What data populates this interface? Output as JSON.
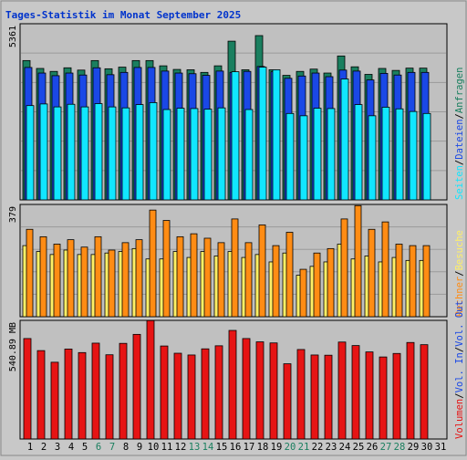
{
  "title": "Tages-Statistik im Monat September 2025",
  "colors": {
    "background": "#c8c8c8",
    "plot_bg": "#c0c0c0",
    "grid": "#9a9a9a",
    "title": "#0033cc",
    "anfragen": "#1a7f5f",
    "dateien": "#1a48e6",
    "seiten": "#11e6ff",
    "besuche": "#fff066",
    "rechner": "#ff8c14",
    "vol_in": "#e61414",
    "weekend_label": "#1a7f5f"
  },
  "chart_data": [
    {
      "type": "bar",
      "ymax_label": "5361",
      "ylim": [
        0,
        5361
      ],
      "grid": true,
      "categories": [
        "1",
        "2",
        "3",
        "4",
        "5",
        "6",
        "7",
        "8",
        "9",
        "10",
        "11",
        "12",
        "13",
        "14",
        "15",
        "16",
        "17",
        "18",
        "19",
        "20",
        "21",
        "22",
        "23",
        "24",
        "25",
        "26",
        "27",
        "28",
        "29",
        "30",
        "31"
      ],
      "weekend_days": [
        "6",
        "7",
        "13",
        "14",
        "20",
        "21",
        "27",
        "28"
      ],
      "axis_right_labels": [
        "Anfragen",
        "Dateien",
        "Seiten"
      ],
      "axis_right_separator": "/",
      "series": [
        {
          "name": "Anfragen",
          "values": [
            4240,
            4000,
            3910,
            4020,
            3950,
            4240,
            3990,
            4040,
            4240,
            4240,
            4080,
            3970,
            3960,
            3880,
            4080,
            4830,
            3960,
            5000,
            3960,
            3790,
            3910,
            3980,
            3860,
            4380,
            4050,
            3820,
            4000,
            3940,
            4010,
            4010,
            0
          ]
        },
        {
          "name": "Dateien",
          "values": [
            4030,
            3860,
            3780,
            3860,
            3800,
            4020,
            3810,
            3880,
            4030,
            4030,
            3920,
            3860,
            3840,
            3790,
            3920,
            3880,
            3910,
            4060,
            3900,
            3700,
            3770,
            3860,
            3750,
            3950,
            3920,
            3650,
            3850,
            3800,
            3880,
            3880,
            0
          ]
        },
        {
          "name": "Seiten",
          "values": [
            2870,
            2920,
            2830,
            2910,
            2830,
            2930,
            2830,
            2800,
            2900,
            2960,
            2750,
            2790,
            2780,
            2760,
            2800,
            3900,
            2750,
            4040,
            3960,
            2630,
            2560,
            2790,
            2780,
            3680,
            2900,
            2560,
            2820,
            2770,
            2690,
            2630,
            0
          ]
        }
      ]
    },
    {
      "type": "bar",
      "ymax_label": "379",
      "ylim": [
        0,
        379
      ],
      "grid": true,
      "categories": [
        "1",
        "2",
        "3",
        "4",
        "5",
        "6",
        "7",
        "8",
        "9",
        "10",
        "11",
        "12",
        "13",
        "14",
        "15",
        "16",
        "17",
        "18",
        "19",
        "20",
        "21",
        "22",
        "23",
        "24",
        "25",
        "26",
        "27",
        "28",
        "29",
        "30",
        "31"
      ],
      "axis_right_labels": [
        "Besuche",
        "Rechner"
      ],
      "axis_right_separator": "/",
      "series": [
        {
          "name": "Besuche",
          "values": [
            240,
            220,
            210,
            225,
            210,
            210,
            215,
            220,
            230,
            195,
            195,
            220,
            200,
            220,
            205,
            220,
            200,
            210,
            185,
            215,
            140,
            170,
            185,
            245,
            195,
            205,
            185,
            200,
            190,
            190,
            0
          ]
        },
        {
          "name": "Rechner",
          "values": [
            295,
            270,
            245,
            260,
            235,
            270,
            225,
            250,
            260,
            360,
            325,
            270,
            280,
            265,
            250,
            330,
            250,
            310,
            240,
            285,
            160,
            215,
            230,
            330,
            375,
            295,
            320,
            245,
            240,
            240,
            0
          ]
        }
      ]
    },
    {
      "type": "bar",
      "ymax_label": "540.89 MB",
      "ylim": [
        0,
        540.89
      ],
      "grid": false,
      "categories": [
        "1",
        "2",
        "3",
        "4",
        "5",
        "6",
        "7",
        "8",
        "9",
        "10",
        "11",
        "12",
        "13",
        "14",
        "15",
        "16",
        "17",
        "18",
        "19",
        "20",
        "21",
        "22",
        "23",
        "24",
        "25",
        "26",
        "27",
        "28",
        "29",
        "30",
        "31"
      ],
      "axis_right_labels": [
        "Volumen",
        "Vol. In",
        "Vol. Out"
      ],
      "axis_right_separator": "/",
      "series": [
        {
          "name": "Vol. In",
          "values": [
            458,
            403,
            350,
            410,
            394,
            437,
            384,
            436,
            477,
            540,
            424,
            391,
            383,
            411,
            425,
            495,
            458,
            443,
            438,
            343,
            408,
            383,
            382,
            442,
            426,
            397,
            374,
            390,
            440,
            430,
            0
          ]
        }
      ]
    }
  ]
}
